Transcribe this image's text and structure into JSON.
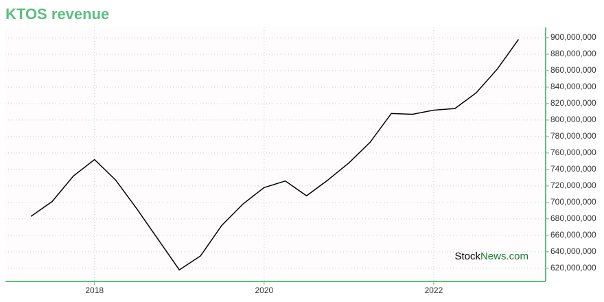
{
  "chart_data": {
    "type": "line",
    "title": "KTOS revenue",
    "x": [
      2017.25,
      2017.5,
      2017.75,
      2018.0,
      2018.25,
      2018.5,
      2018.75,
      2019.0,
      2019.25,
      2019.5,
      2019.75,
      2020.0,
      2020.25,
      2020.5,
      2020.75,
      2021.0,
      2021.25,
      2021.5,
      2021.75,
      2022.0,
      2022.25,
      2022.5,
      2022.75,
      2023.0
    ],
    "series": [
      {
        "color": "#000000",
        "values": [
          683000000,
          701000000,
          732000000,
          752000000,
          727000000,
          692000000,
          655000000,
          618000000,
          635000000,
          672000000,
          698000000,
          718000000,
          726000000,
          708000000,
          727000000,
          748000000,
          773000000,
          808000000,
          807000000,
          812000000,
          814000000,
          833000000,
          862000000,
          898000000
        ]
      }
    ],
    "xlim": [
      2016.95,
      2023.32
    ],
    "xticks": [
      2018,
      2020,
      2022
    ],
    "ylim": [
      604000000,
      912500000
    ],
    "yticks": [
      {
        "value": 620000000,
        "label": "620,000,000"
      },
      {
        "value": 640000000,
        "label": "640,000,000"
      },
      {
        "value": 660000000,
        "label": "660,000,000"
      },
      {
        "value": 680000000,
        "label": "680,000,000"
      },
      {
        "value": 700000000,
        "label": "700,000,000"
      },
      {
        "value": 720000000,
        "label": "720,000,000"
      },
      {
        "value": 740000000,
        "label": "740,000,000"
      },
      {
        "value": 760000000,
        "label": "760,000,000"
      },
      {
        "value": 780000000,
        "label": "780,000,000"
      },
      {
        "value": 800000000,
        "label": "800,000,000"
      },
      {
        "value": 820000000,
        "label": "820,000,000"
      },
      {
        "value": 840000000,
        "label": "840,000,000"
      },
      {
        "value": 860000000,
        "label": "860,000,000"
      },
      {
        "value": 880000000,
        "label": "880,000,000"
      },
      {
        "value": 900000000,
        "label": "900,000,000"
      }
    ],
    "grid": true,
    "axis_color": "#5cbf7f",
    "watermark_parts": [
      "Stock",
      "News",
      ".com"
    ]
  }
}
